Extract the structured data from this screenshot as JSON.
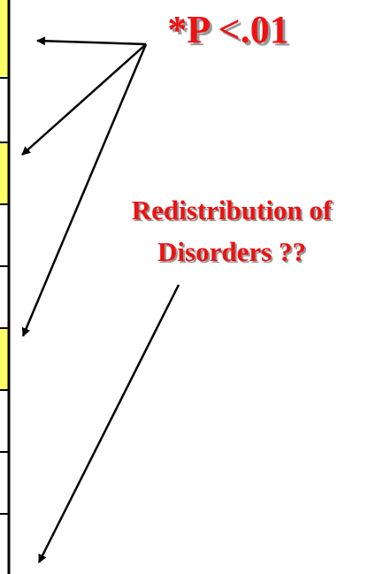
{
  "annotations": {
    "significance": "*P <.01",
    "note_lines": [
      "Redistribution of",
      "Disorders ??"
    ]
  }
}
